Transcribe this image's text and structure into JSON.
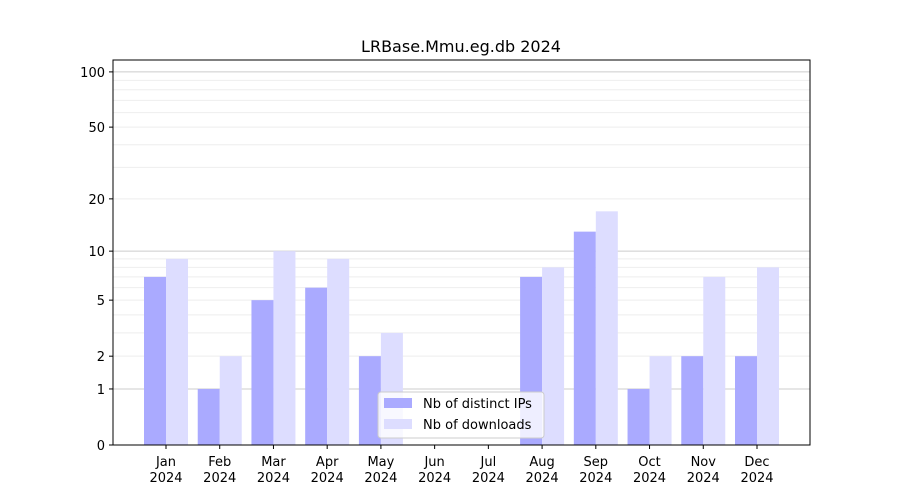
{
  "chart_data": {
    "type": "bar",
    "title": "LRBase.Mmu.eg.db 2024",
    "xlabel": "",
    "ylabel": "",
    "yscale": "log(1+y)",
    "ylim": [
      0,
      116
    ],
    "yticks": [
      0,
      1,
      2,
      5,
      10,
      20,
      50,
      100
    ],
    "grid": true,
    "legend_position": "bottom-center",
    "categories": [
      "Jan\n2024",
      "Feb\n2024",
      "Mar\n2024",
      "Apr\n2024",
      "May\n2024",
      "Jun\n2024",
      "Jul\n2024",
      "Aug\n2024",
      "Sep\n2024",
      "Oct\n2024",
      "Nov\n2024",
      "Dec\n2024"
    ],
    "series": [
      {
        "name": "Nb of distinct IPs",
        "color": "#aaaaff",
        "values": [
          7,
          1,
          5,
          6,
          2,
          0,
          0,
          7,
          13,
          1,
          2,
          2
        ]
      },
      {
        "name": "Nb of downloads",
        "color": "#ddddff",
        "values": [
          9,
          2,
          10,
          9,
          3,
          0,
          0,
          8,
          17,
          2,
          7,
          8
        ]
      }
    ]
  }
}
